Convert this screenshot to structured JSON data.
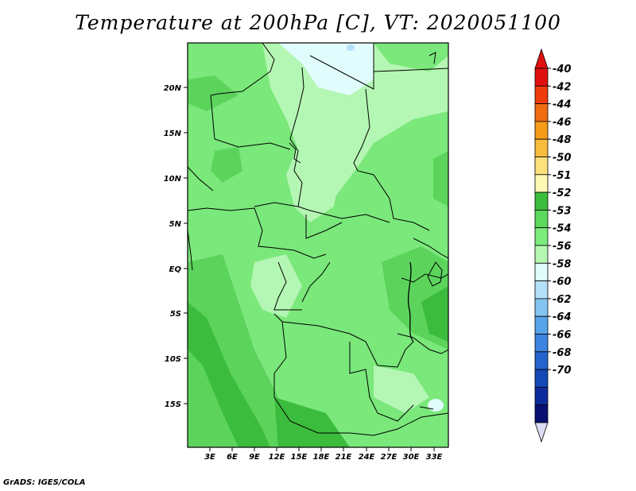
{
  "title": "Temperature at 200hPa [C], VT: 2020051100",
  "credit": "GrADS: IGES/COLA",
  "map": {
    "lat_labels": [
      "20N",
      "15N",
      "10N",
      "5N",
      "EQ",
      "5S",
      "10S",
      "15S"
    ],
    "lon_labels": [
      "3E",
      "6E",
      "9E",
      "12E",
      "15E",
      "18E",
      "21E",
      "24E",
      "27E",
      "30E",
      "33E"
    ]
  },
  "colorbar": {
    "levels": [
      {
        "label": "-40",
        "color": "#e01010"
      },
      {
        "label": "-42",
        "color": "#f03c0c"
      },
      {
        "label": "-44",
        "color": "#f06c10"
      },
      {
        "label": "-46",
        "color": "#f59c18"
      },
      {
        "label": "-48",
        "color": "#f8bc3c"
      },
      {
        "label": "-50",
        "color": "#fce07c"
      },
      {
        "label": "-51",
        "color": "#fdf8b4"
      },
      {
        "label": "-52",
        "color": "#3cbc3c"
      },
      {
        "label": "-53",
        "color": "#5cd85c"
      },
      {
        "label": "-54",
        "color": "#7cec7c"
      },
      {
        "label": "-56",
        "color": "#b4f8b4"
      },
      {
        "label": "-58",
        "color": "#e0fcfc"
      },
      {
        "label": "-60",
        "color": "#b4e0f8"
      },
      {
        "label": "-62",
        "color": "#84c4f0"
      },
      {
        "label": "-64",
        "color": "#58a4e8"
      },
      {
        "label": "-66",
        "color": "#3c84e0"
      },
      {
        "label": "-68",
        "color": "#2464cc"
      },
      {
        "label": "-70",
        "color": "#1448b4"
      },
      {
        "label": "",
        "color": "#0c2c9c"
      },
      {
        "label": "",
        "color": "#081070"
      }
    ],
    "top_arrow_color": "#e01010",
    "bottom_arrow_color": "#dcdcf4"
  }
}
